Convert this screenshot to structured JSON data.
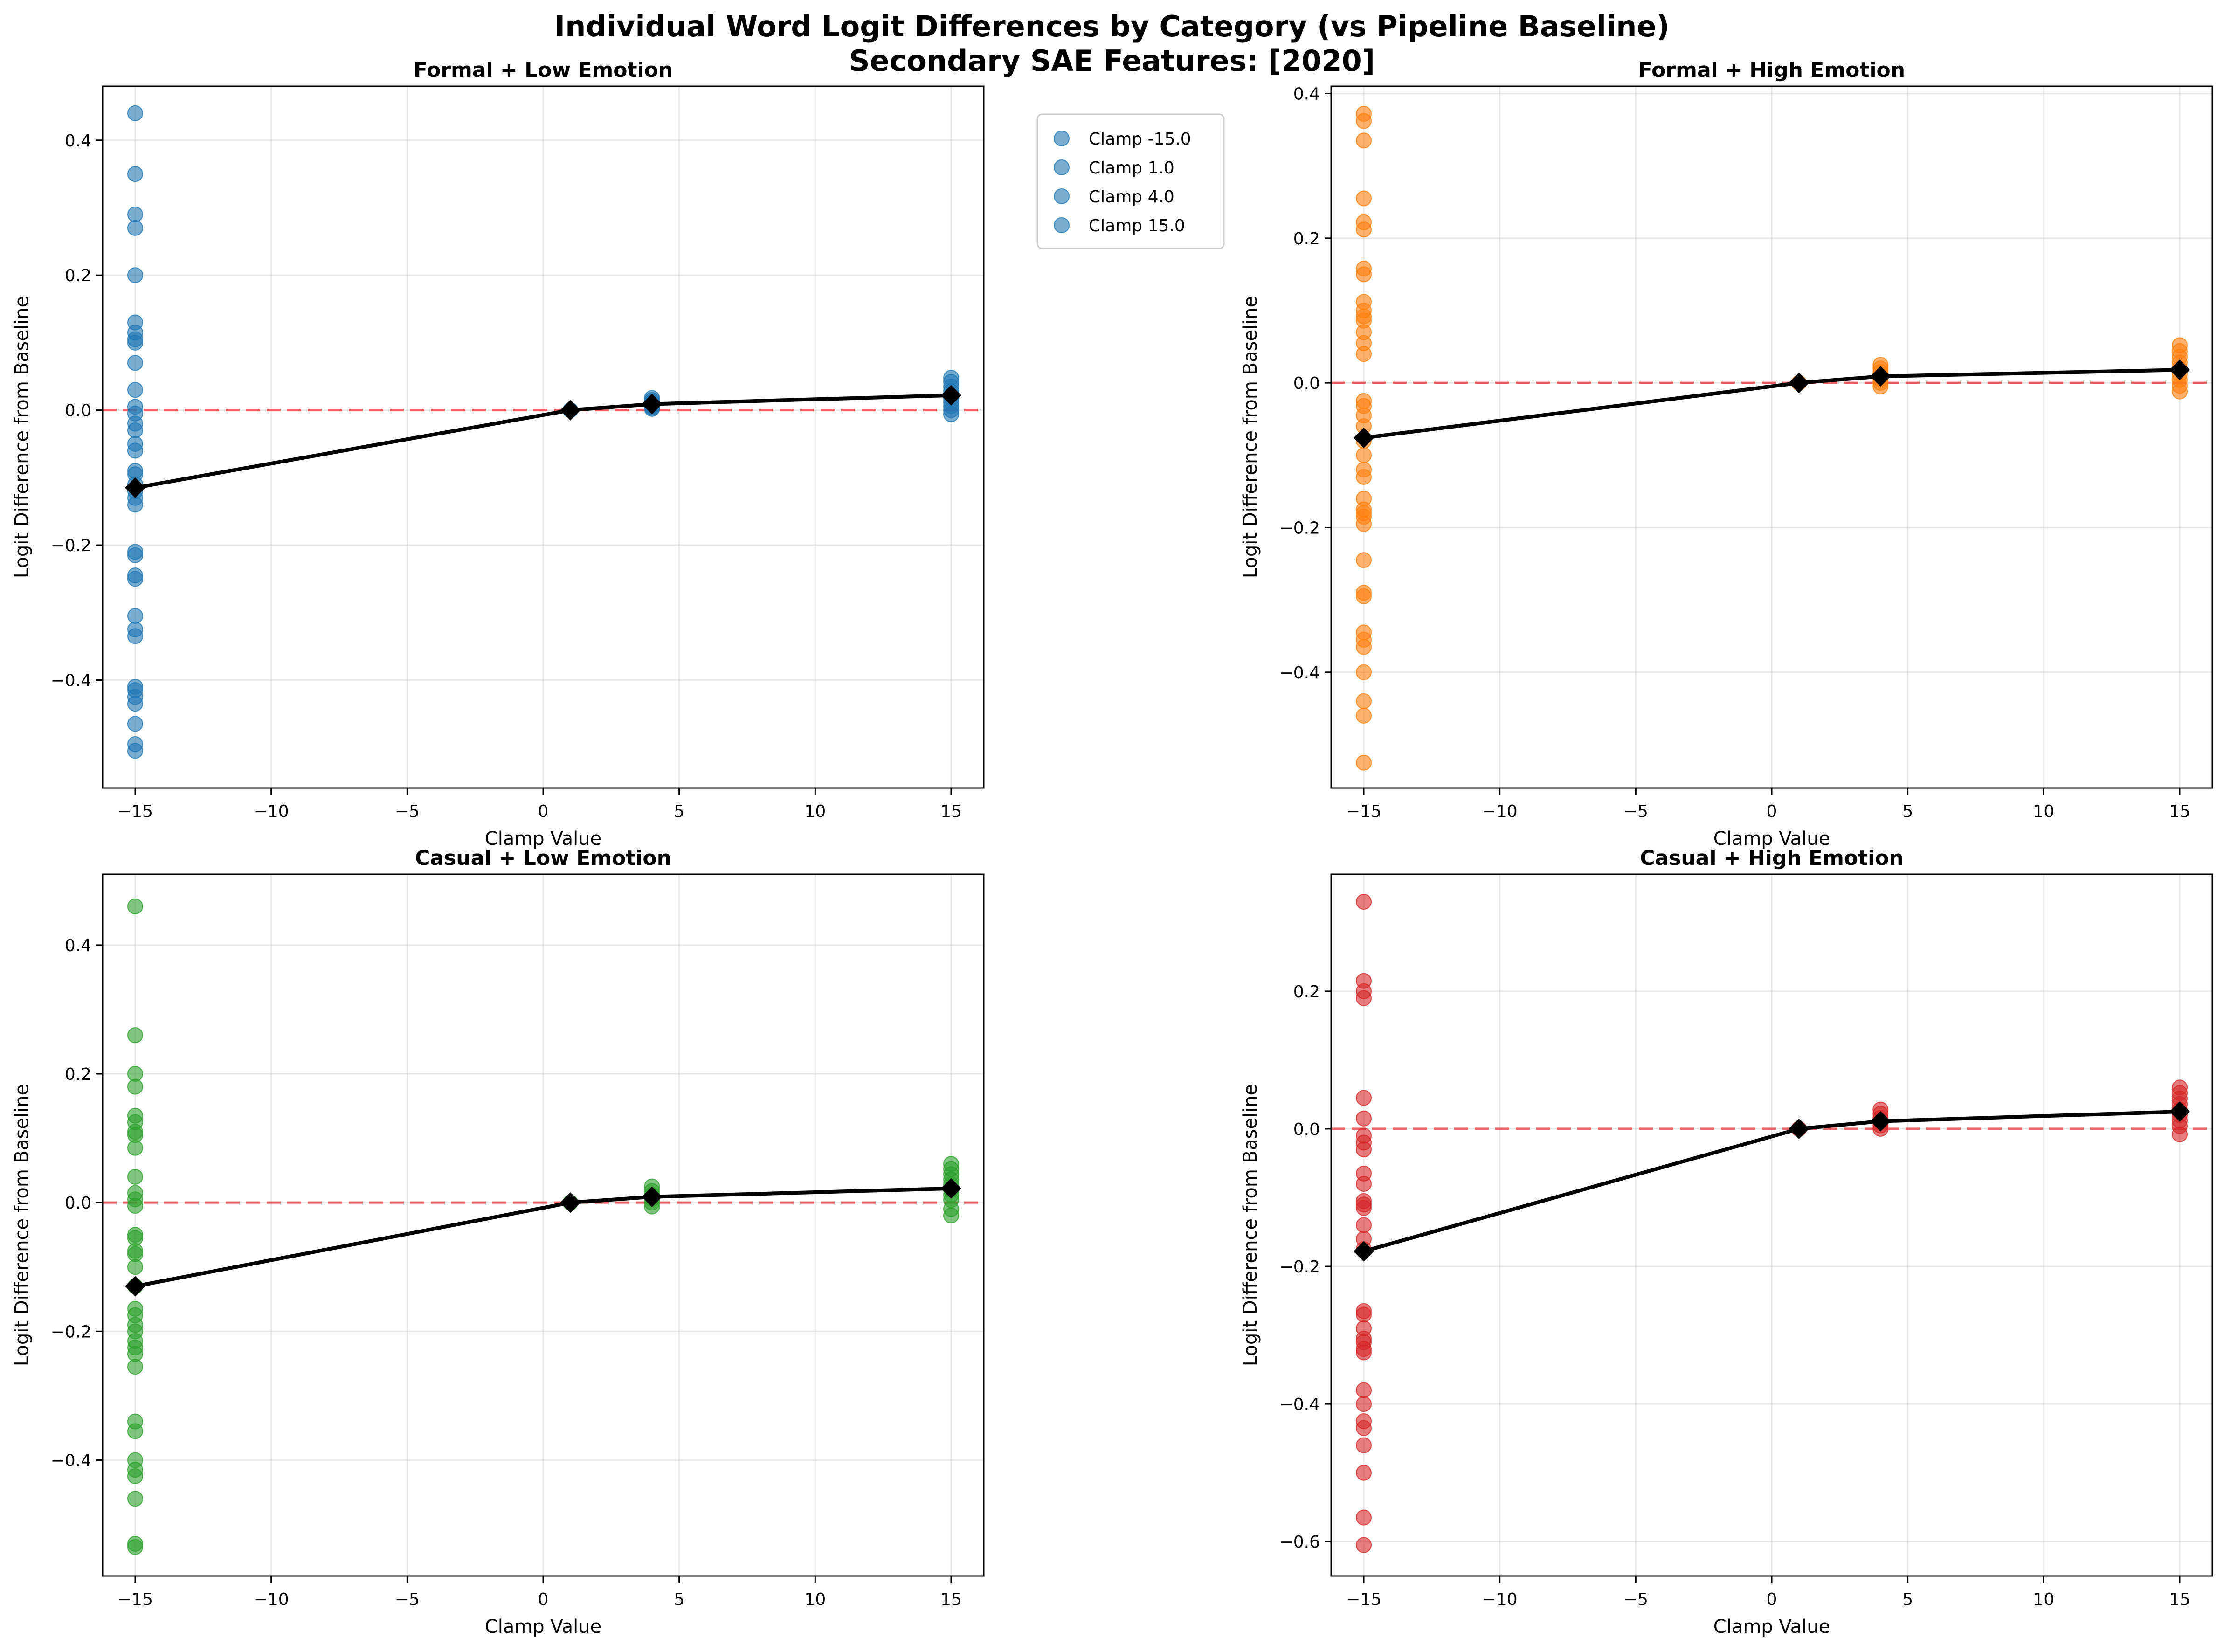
{
  "figure": {
    "title_line1": "Individual Word Logit Differences by Category (vs Pipeline Baseline)",
    "title_line2": "Secondary SAE Features: [2020]"
  },
  "colors": {
    "blue": "#1f77b4",
    "orange": "#ff7f0e",
    "green": "#2ca02c",
    "red": "#d62728",
    "mean_line": "#000000",
    "baseline": "#e8474a"
  },
  "chart_data": [
    {
      "type": "scatter",
      "title": "Formal + Low Emotion",
      "xlabel": "Clamp Value",
      "ylabel": "Logit Difference from Baseline",
      "xlim": [
        -16.2,
        16.2
      ],
      "ylim": [
        -0.56,
        0.48
      ],
      "xticks": [
        -15,
        -10,
        -5,
        0,
        5,
        10,
        15
      ],
      "xtick_labels": [
        "−15",
        "−10",
        "−5",
        "0",
        "5",
        "10",
        "15"
      ],
      "yticks": [
        -0.4,
        -0.2,
        0.0,
        0.2,
        0.4
      ],
      "ytick_labels": [
        "−0.4",
        "−0.2",
        "0.0",
        "0.2",
        "0.4"
      ],
      "color": "#1f77b4",
      "grid": true,
      "baseline_y": 0,
      "legend": {
        "placement": "outside-right",
        "entries": [
          "Clamp -15.0",
          "Clamp 1.0",
          "Clamp 4.0",
          "Clamp 15.0"
        ]
      },
      "points": [
        {
          "x": -15,
          "values": [
            0.44,
            0.35,
            0.29,
            0.27,
            0.2,
            0.13,
            0.115,
            0.105,
            0.1,
            0.07,
            0.03,
            0.005,
            -0.005,
            -0.02,
            -0.03,
            -0.05,
            -0.06,
            -0.09,
            -0.095,
            -0.11,
            -0.12,
            -0.13,
            -0.14,
            -0.21,
            -0.215,
            -0.245,
            -0.25,
            -0.305,
            -0.325,
            -0.335,
            -0.41,
            -0.415,
            -0.425,
            -0.435,
            -0.465,
            -0.495,
            -0.505
          ]
        },
        {
          "x": 1,
          "values": [
            0.0
          ]
        },
        {
          "x": 4,
          "values": [
            0.018,
            0.015,
            0.012,
            0.01,
            0.008,
            0.006,
            0.004,
            0.002
          ]
        },
        {
          "x": 15,
          "values": [
            0.048,
            0.042,
            0.035,
            0.028,
            0.022,
            0.018,
            0.012,
            0.006,
            0.0,
            -0.006
          ]
        }
      ],
      "mean_line": {
        "x": [
          -15,
          1,
          4,
          15
        ],
        "y": [
          -0.115,
          0.0,
          0.009,
          0.022
        ]
      }
    },
    {
      "type": "scatter",
      "title": "Formal + High Emotion",
      "xlabel": "Clamp Value",
      "ylabel": "Logit Difference from Baseline",
      "xlim": [
        -16.2,
        16.2
      ],
      "ylim": [
        -0.56,
        0.41
      ],
      "xticks": [
        -15,
        -10,
        -5,
        0,
        5,
        10,
        15
      ],
      "xtick_labels": [
        "−15",
        "−10",
        "−5",
        "0",
        "5",
        "10",
        "15"
      ],
      "yticks": [
        -0.4,
        -0.2,
        0.0,
        0.2,
        0.4
      ],
      "ytick_labels": [
        "−0.4",
        "−0.2",
        "0.0",
        "0.2",
        "0.4"
      ],
      "color": "#ff7f0e",
      "grid": true,
      "baseline_y": 0,
      "points": [
        {
          "x": -15,
          "values": [
            0.372,
            0.362,
            0.335,
            0.255,
            0.222,
            0.212,
            0.158,
            0.15,
            0.112,
            0.1,
            0.092,
            0.086,
            0.07,
            0.055,
            0.04,
            -0.025,
            -0.032,
            -0.045,
            -0.06,
            -0.08,
            -0.1,
            -0.12,
            -0.13,
            -0.16,
            -0.175,
            -0.18,
            -0.185,
            -0.195,
            -0.245,
            -0.29,
            -0.295,
            -0.345,
            -0.355,
            -0.365,
            -0.4,
            -0.44,
            -0.46,
            -0.525
          ]
        },
        {
          "x": 1,
          "values": [
            0.0
          ]
        },
        {
          "x": 4,
          "values": [
            0.025,
            0.02,
            0.015,
            0.01,
            0.005,
            0.0,
            -0.005
          ]
        },
        {
          "x": 15,
          "values": [
            0.052,
            0.044,
            0.036,
            0.028,
            0.02,
            0.012,
            0.004,
            -0.004,
            -0.012
          ]
        }
      ],
      "mean_line": {
        "x": [
          -15,
          1,
          4,
          15
        ],
        "y": [
          -0.076,
          0.0,
          0.009,
          0.018
        ]
      }
    },
    {
      "type": "scatter",
      "title": "Casual + Low Emotion",
      "xlabel": "Clamp Value",
      "ylabel": "Logit Difference from Baseline",
      "xlim": [
        -16.2,
        16.2
      ],
      "ylim": [
        -0.58,
        0.51
      ],
      "xticks": [
        -15,
        -10,
        -5,
        0,
        5,
        10,
        15
      ],
      "xtick_labels": [
        "−15",
        "−10",
        "−5",
        "0",
        "5",
        "10",
        "15"
      ],
      "yticks": [
        -0.4,
        -0.2,
        0.0,
        0.2,
        0.4
      ],
      "ytick_labels": [
        "−0.4",
        "−0.2",
        "0.0",
        "0.2",
        "0.4"
      ],
      "color": "#2ca02c",
      "grid": true,
      "baseline_y": 0,
      "points": [
        {
          "x": -15,
          "values": [
            0.46,
            0.26,
            0.2,
            0.18,
            0.135,
            0.125,
            0.11,
            0.105,
            0.085,
            0.04,
            0.015,
            0.005,
            -0.005,
            -0.05,
            -0.055,
            -0.075,
            -0.08,
            -0.1,
            -0.13,
            -0.165,
            -0.175,
            -0.19,
            -0.2,
            -0.215,
            -0.225,
            -0.235,
            -0.255,
            -0.34,
            -0.355,
            -0.4,
            -0.415,
            -0.425,
            -0.46,
            -0.53,
            -0.535
          ]
        },
        {
          "x": 1,
          "values": [
            0.0
          ]
        },
        {
          "x": 4,
          "values": [
            0.025,
            0.018,
            0.012,
            0.006,
            0.0,
            -0.006
          ]
        },
        {
          "x": 15,
          "values": [
            0.06,
            0.052,
            0.044,
            0.036,
            0.028,
            0.02,
            0.012,
            0.004,
            -0.01,
            -0.02
          ]
        }
      ],
      "mean_line": {
        "x": [
          -15,
          1,
          4,
          15
        ],
        "y": [
          -0.13,
          0.0,
          0.009,
          0.022
        ]
      }
    },
    {
      "type": "scatter",
      "title": "Casual + High Emotion",
      "xlabel": "Clamp Value",
      "ylabel": "Logit Difference from Baseline",
      "xlim": [
        -16.2,
        16.2
      ],
      "ylim": [
        -0.65,
        0.37
      ],
      "xticks": [
        -15,
        -10,
        -5,
        0,
        5,
        10,
        15
      ],
      "xtick_labels": [
        "−15",
        "−10",
        "−5",
        "0",
        "5",
        "10",
        "15"
      ],
      "yticks": [
        -0.6,
        -0.4,
        -0.2,
        0.0,
        0.2
      ],
      "ytick_labels": [
        "−0.6",
        "−0.4",
        "−0.2",
        "0.0",
        "0.2"
      ],
      "color": "#d62728",
      "grid": true,
      "baseline_y": 0,
      "points": [
        {
          "x": -15,
          "values": [
            0.33,
            0.215,
            0.2,
            0.19,
            0.045,
            0.015,
            -0.01,
            -0.02,
            -0.03,
            -0.065,
            -0.08,
            -0.105,
            -0.11,
            -0.115,
            -0.14,
            -0.16,
            -0.175,
            -0.265,
            -0.27,
            -0.29,
            -0.305,
            -0.31,
            -0.32,
            -0.325,
            -0.38,
            -0.4,
            -0.425,
            -0.435,
            -0.46,
            -0.5,
            -0.565,
            -0.605
          ]
        },
        {
          "x": 1,
          "values": [
            0.0
          ]
        },
        {
          "x": 4,
          "values": [
            0.028,
            0.022,
            0.016,
            0.01,
            0.005,
            0.0
          ]
        },
        {
          "x": 15,
          "values": [
            0.06,
            0.052,
            0.044,
            0.036,
            0.028,
            0.02,
            0.012,
            0.004,
            -0.008
          ]
        }
      ],
      "mean_line": {
        "x": [
          -15,
          1,
          4,
          15
        ],
        "y": [
          -0.178,
          0.0,
          0.011,
          0.025
        ]
      }
    }
  ]
}
